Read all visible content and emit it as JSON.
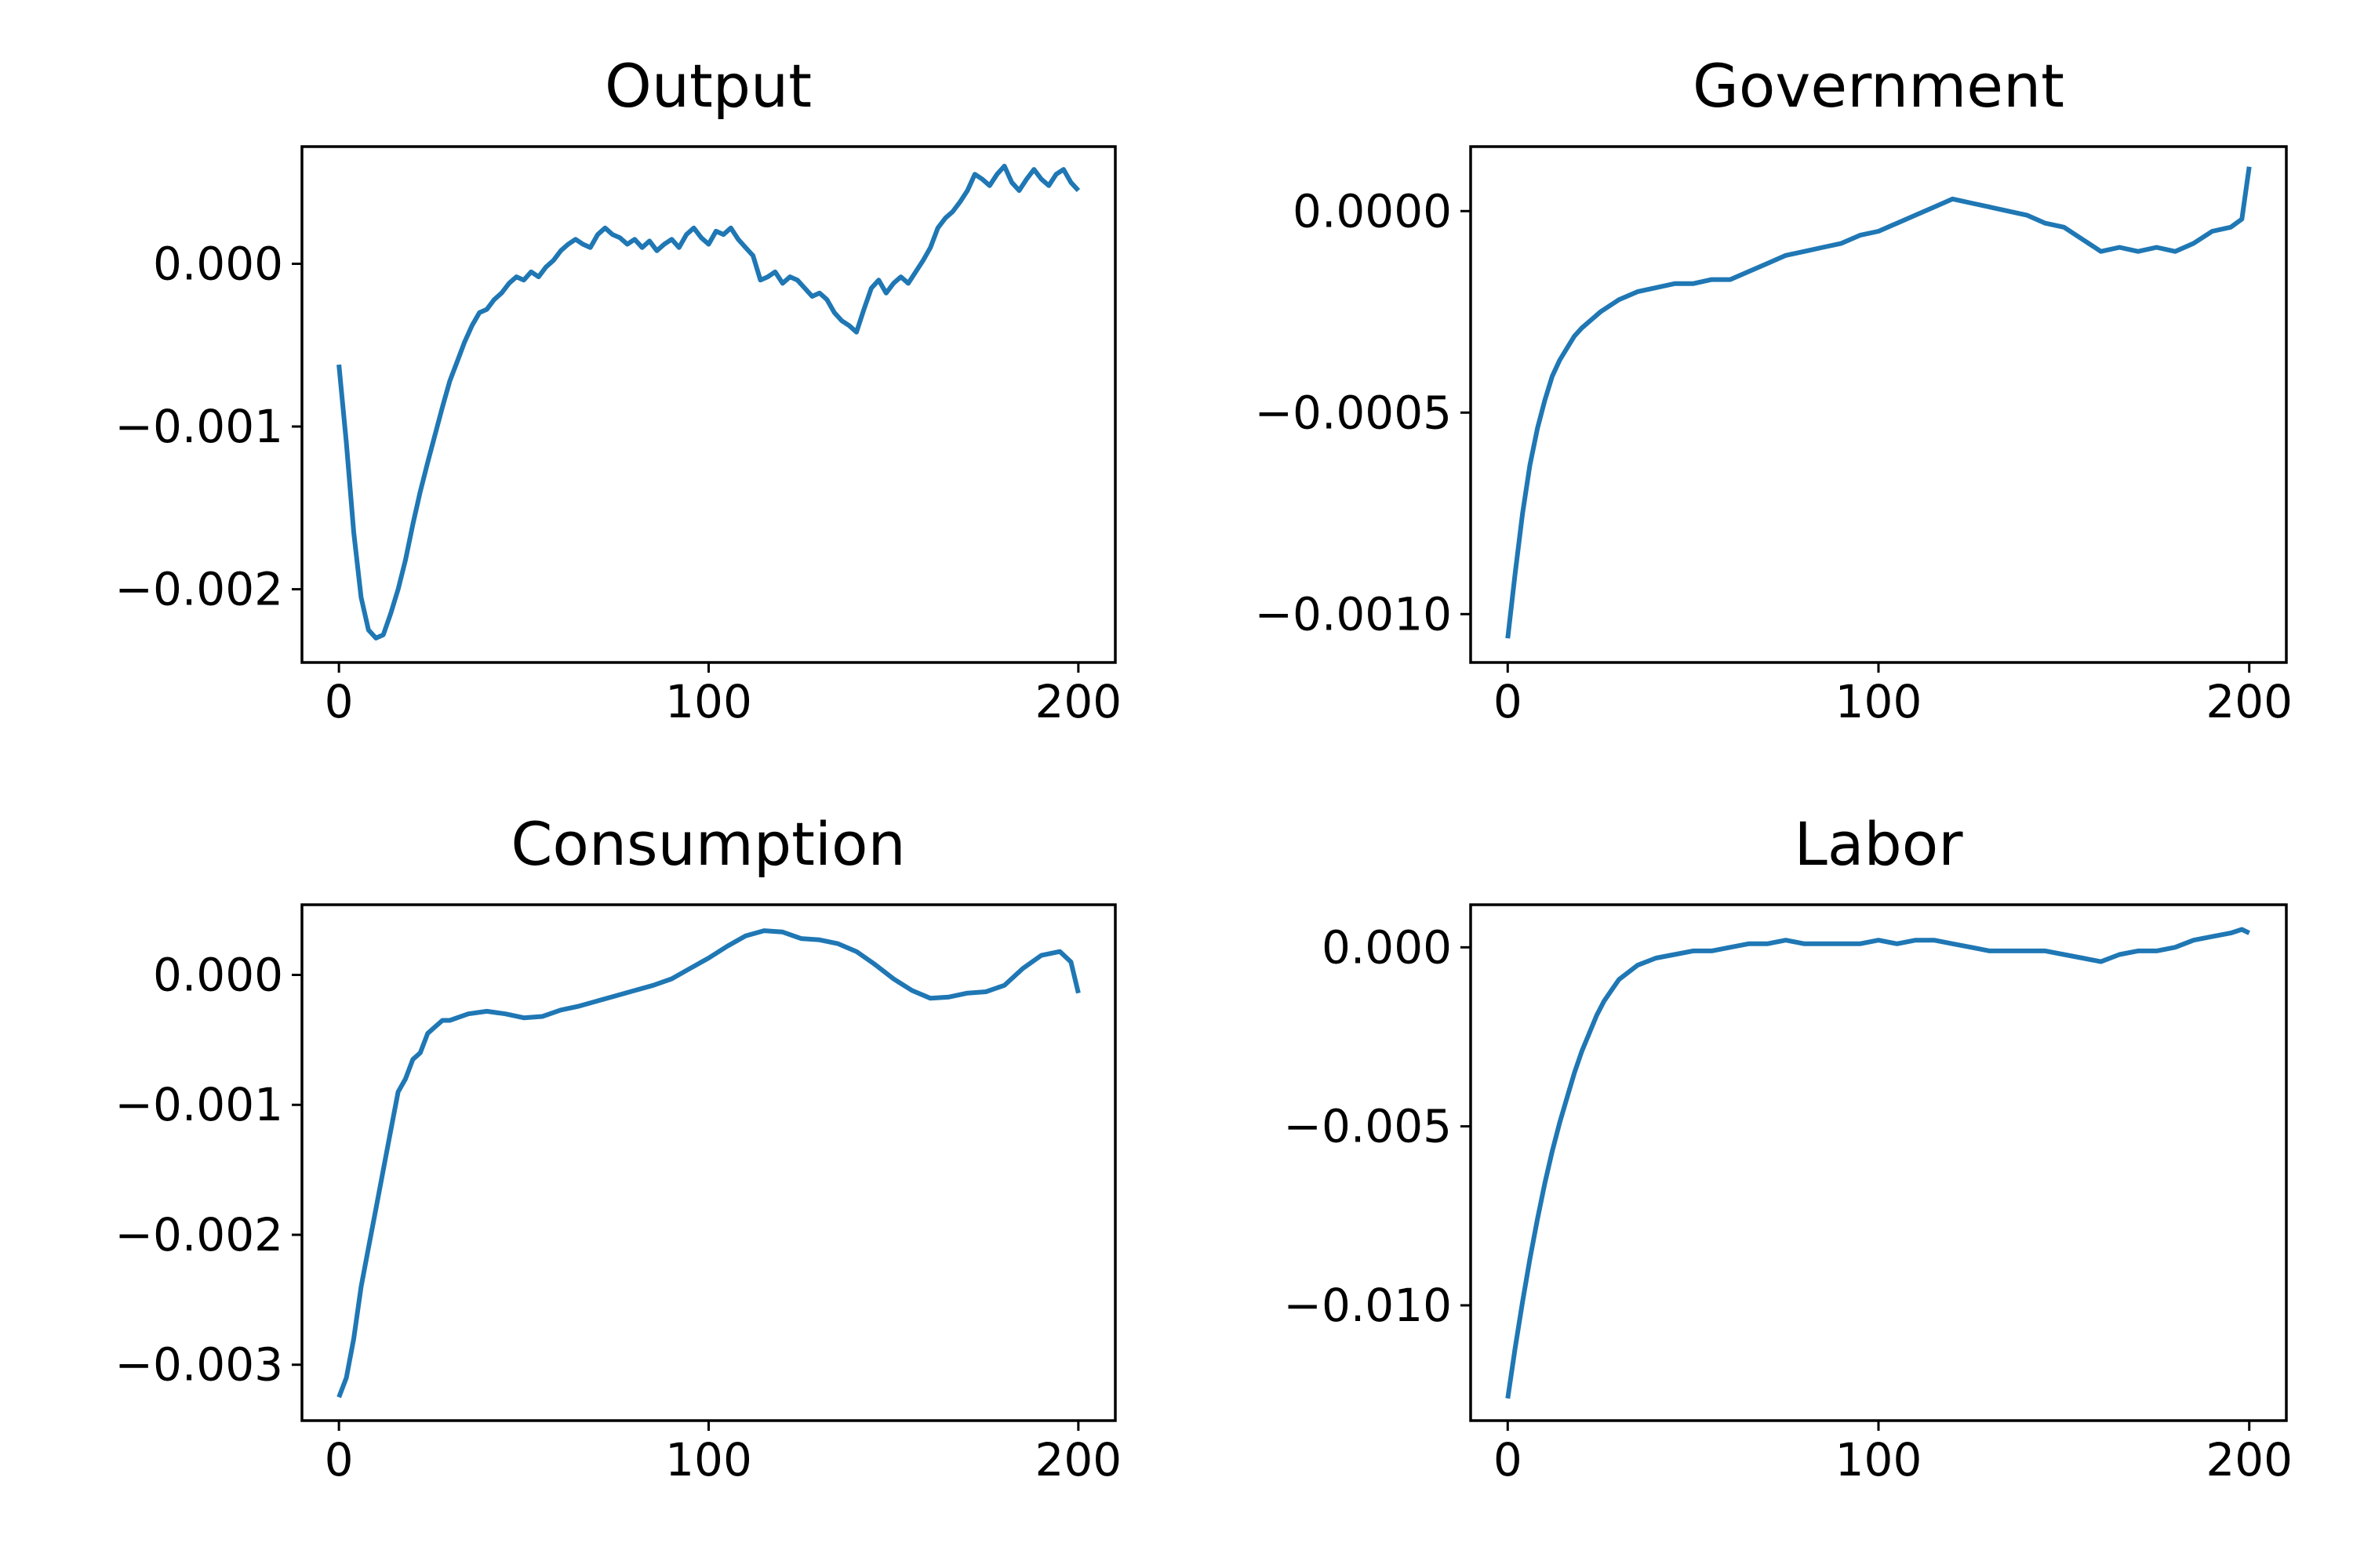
{
  "chart_data": [
    {
      "type": "line",
      "title": "Output",
      "xlabel": "",
      "ylabel": "",
      "xlim": [
        -10,
        210
      ],
      "ylim": [
        -0.00245,
        0.00072
      ],
      "xticks": [
        0,
        100,
        200
      ],
      "xtick_labels": [
        "0",
        "100",
        "200"
      ],
      "yticks": [
        0,
        -0.001,
        -0.002
      ],
      "ytick_labels": [
        "0.000",
        "−0.001",
        "−0.002"
      ],
      "grid": false,
      "series": [
        {
          "color": "#1f77b4",
          "x": [
            0,
            2,
            4,
            6,
            8,
            10,
            12,
            14,
            16,
            18,
            20,
            22,
            24,
            26,
            28,
            30,
            32,
            34,
            36,
            38,
            40,
            42,
            44,
            46,
            48,
            50,
            52,
            54,
            56,
            58,
            60,
            62,
            64,
            66,
            68,
            70,
            72,
            74,
            76,
            78,
            80,
            82,
            84,
            86,
            88,
            90,
            92,
            94,
            96,
            98,
            100,
            102,
            104,
            106,
            108,
            110,
            112,
            114,
            116,
            118,
            120,
            122,
            124,
            126,
            128,
            130,
            132,
            134,
            136,
            138,
            140,
            142,
            144,
            146,
            148,
            150,
            152,
            154,
            156,
            158,
            160,
            162,
            164,
            166,
            168,
            170,
            172,
            174,
            176,
            178,
            180,
            182,
            184,
            186,
            188,
            190,
            192,
            194,
            196,
            198,
            200
          ],
          "values": [
            -0.00062,
            -0.0011,
            -0.00165,
            -0.00205,
            -0.00225,
            -0.0023,
            -0.00228,
            -0.00215,
            -0.002,
            -0.00182,
            -0.0016,
            -0.0014,
            -0.00122,
            -0.00105,
            -0.00088,
            -0.00072,
            -0.0006,
            -0.00048,
            -0.00038,
            -0.0003,
            -0.00028,
            -0.00022,
            -0.00018,
            -0.00012,
            -8e-05,
            -0.0001,
            -5e-05,
            -8e-05,
            -2e-05,
            2e-05,
            8e-05,
            0.00012,
            0.00015,
            0.00012,
            0.0001,
            0.00018,
            0.00022,
            0.00018,
            0.00016,
            0.00012,
            0.00015,
            0.0001,
            0.00014,
            8e-05,
            0.00012,
            0.00015,
            0.0001,
            0.00018,
            0.00022,
            0.00016,
            0.00012,
            0.0002,
            0.00018,
            0.00022,
            0.00015,
            0.0001,
            5e-05,
            -0.0001,
            -8e-05,
            -5e-05,
            -0.00012,
            -8e-05,
            -0.0001,
            -0.00015,
            -0.0002,
            -0.00018,
            -0.00022,
            -0.0003,
            -0.00035,
            -0.00038,
            -0.00042,
            -0.00028,
            -0.00015,
            -0.0001,
            -0.00018,
            -0.00012,
            -8e-05,
            -0.00012,
            -5e-05,
            2e-05,
            0.0001,
            0.00022,
            0.00028,
            0.00032,
            0.00038,
            0.00045,
            0.00055,
            0.00052,
            0.00048,
            0.00055,
            0.0006,
            0.0005,
            0.00045,
            0.00052,
            0.00058,
            0.00052,
            0.00048,
            0.00055,
            0.00058,
            0.0005,
            0.00045
          ]
        }
      ]
    },
    {
      "type": "line",
      "title": "Government",
      "xlabel": "",
      "ylabel": "",
      "xlim": [
        -10,
        210
      ],
      "ylim": [
        -0.00112,
        0.00016
      ],
      "xticks": [
        0,
        100,
        200
      ],
      "xtick_labels": [
        "0",
        "100",
        "200"
      ],
      "yticks": [
        0,
        -0.0005,
        -0.001
      ],
      "ytick_labels": [
        "0.0000",
        "−0.0005",
        "−0.0010"
      ],
      "grid": false,
      "series": [
        {
          "color": "#1f77b4",
          "x": [
            0,
            2,
            4,
            6,
            8,
            10,
            12,
            14,
            16,
            18,
            20,
            25,
            30,
            35,
            40,
            45,
            50,
            55,
            60,
            65,
            70,
            75,
            80,
            85,
            90,
            95,
            100,
            105,
            110,
            115,
            120,
            125,
            130,
            135,
            140,
            145,
            150,
            155,
            160,
            165,
            170,
            175,
            180,
            185,
            190,
            195,
            198,
            200
          ],
          "values": [
            -0.00106,
            -0.0009,
            -0.00075,
            -0.00063,
            -0.00054,
            -0.00047,
            -0.00041,
            -0.00037,
            -0.00034,
            -0.00031,
            -0.00029,
            -0.00025,
            -0.00022,
            -0.0002,
            -0.00019,
            -0.00018,
            -0.00018,
            -0.00017,
            -0.00017,
            -0.00015,
            -0.00013,
            -0.00011,
            -0.0001,
            -9e-05,
            -8e-05,
            -6e-05,
            -5e-05,
            -3e-05,
            -1e-05,
            1e-05,
            3e-05,
            2e-05,
            1e-05,
            0.0,
            -1e-05,
            -3e-05,
            -4e-05,
            -7e-05,
            -0.0001,
            -9e-05,
            -0.0001,
            -9e-05,
            -0.0001,
            -8e-05,
            -5e-05,
            -4e-05,
            -2e-05,
            0.00011
          ]
        }
      ]
    },
    {
      "type": "line",
      "title": "Consumption",
      "xlabel": "",
      "ylabel": "",
      "xlim": [
        -10,
        210
      ],
      "ylim": [
        -0.00343,
        0.00054
      ],
      "xticks": [
        0,
        100,
        200
      ],
      "xtick_labels": [
        "0",
        "100",
        "200"
      ],
      "yticks": [
        0,
        -0.001,
        -0.002,
        -0.003
      ],
      "ytick_labels": [
        "0.000",
        "−0.001",
        "−0.002",
        "−0.003"
      ],
      "grid": false,
      "series": [
        {
          "color": "#1f77b4",
          "x": [
            0,
            2,
            4,
            6,
            8,
            10,
            12,
            14,
            16,
            18,
            20,
            22,
            24,
            26,
            28,
            30,
            35,
            40,
            45,
            50,
            55,
            60,
            65,
            70,
            75,
            80,
            85,
            90,
            95,
            100,
            105,
            110,
            115,
            120,
            125,
            130,
            135,
            140,
            145,
            150,
            155,
            160,
            165,
            170,
            175,
            180,
            185,
            190,
            195,
            198,
            200
          ],
          "values": [
            -0.00325,
            -0.0031,
            -0.0028,
            -0.0024,
            -0.0021,
            -0.0018,
            -0.0015,
            -0.0012,
            -0.0009,
            -0.0008,
            -0.00065,
            -0.0006,
            -0.00045,
            -0.0004,
            -0.00035,
            -0.00035,
            -0.0003,
            -0.00028,
            -0.0003,
            -0.00033,
            -0.00032,
            -0.00027,
            -0.00024,
            -0.0002,
            -0.00016,
            -0.00012,
            -8e-05,
            -3e-05,
            5e-05,
            0.00013,
            0.00022,
            0.0003,
            0.00034,
            0.00033,
            0.00028,
            0.00027,
            0.00024,
            0.00018,
            8e-05,
            -3e-05,
            -0.00012,
            -0.00018,
            -0.00017,
            -0.00014,
            -0.00013,
            -8e-05,
            5e-05,
            0.00015,
            0.00018,
            0.0001,
            -0.00014
          ]
        }
      ]
    },
    {
      "type": "line",
      "title": "Labor",
      "xlabel": "",
      "ylabel": "",
      "xlim": [
        -10,
        210
      ],
      "ylim": [
        -0.01322,
        0.00119
      ],
      "xticks": [
        0,
        100,
        200
      ],
      "xtick_labels": [
        "0",
        "100",
        "200"
      ],
      "yticks": [
        0,
        -0.005,
        -0.01
      ],
      "ytick_labels": [
        "0.000",
        "−0.005",
        "−0.010"
      ],
      "grid": false,
      "series": [
        {
          "color": "#1f77b4",
          "x": [
            0,
            2,
            4,
            6,
            8,
            10,
            12,
            14,
            16,
            18,
            20,
            22,
            24,
            26,
            28,
            30,
            35,
            40,
            45,
            50,
            55,
            60,
            65,
            70,
            75,
            80,
            85,
            90,
            95,
            100,
            105,
            110,
            115,
            120,
            125,
            130,
            135,
            140,
            145,
            150,
            155,
            160,
            165,
            170,
            175,
            180,
            185,
            190,
            195,
            198,
            200
          ],
          "values": [
            -0.0126,
            -0.0112,
            -0.0099,
            -0.0087,
            -0.0076,
            -0.0066,
            -0.0057,
            -0.0049,
            -0.0042,
            -0.0035,
            -0.0029,
            -0.0024,
            -0.0019,
            -0.0015,
            -0.0012,
            -0.0009,
            -0.0005,
            -0.0003,
            -0.0002,
            -0.0001,
            -0.0001,
            0.0,
            0.0001,
            0.0001,
            0.0002,
            0.0001,
            0.0001,
            0.0001,
            0.0001,
            0.0002,
            0.0001,
            0.0002,
            0.0002,
            0.0001,
            0.0,
            -0.0001,
            -0.0001,
            -0.0001,
            -0.0001,
            -0.0002,
            -0.0003,
            -0.0004,
            -0.0002,
            -0.0001,
            -0.0001,
            0.0,
            0.0002,
            0.0003,
            0.0004,
            0.0005,
            0.0004
          ]
        }
      ]
    }
  ]
}
